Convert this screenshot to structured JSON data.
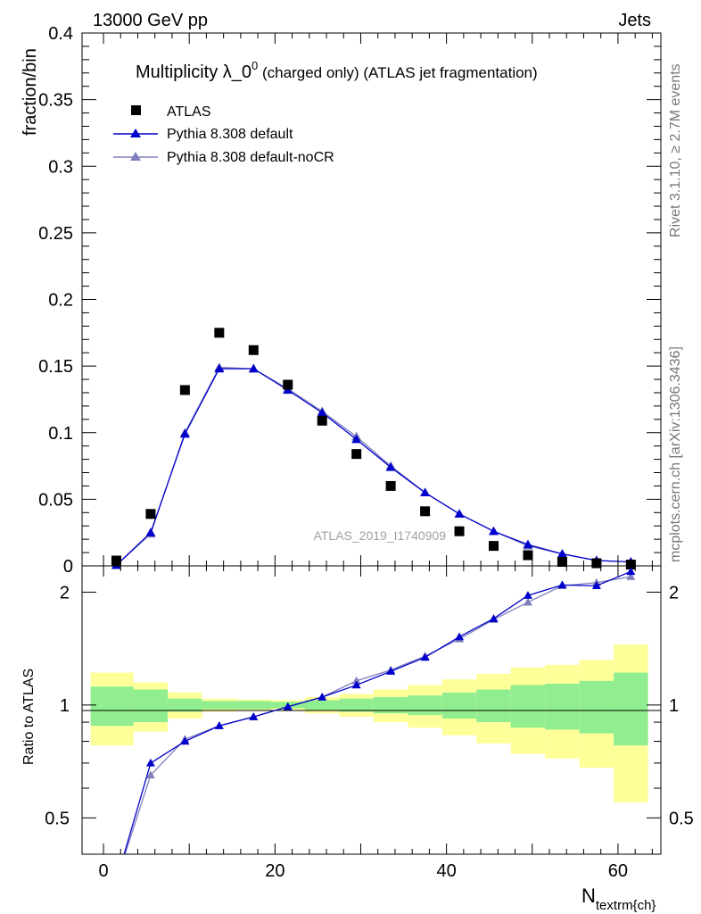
{
  "header": {
    "left": "13000 GeV pp",
    "right": "Jets"
  },
  "title": {
    "main": "Multiplicity λ_0",
    "sup": "0",
    "rest": " (charged only) (ATLAS jet fragmentation)"
  },
  "side_labels": {
    "rivet": "Rivet 3.1.10, ≥ 2.7M events",
    "mcplots": "mcplots.cern.ch [arXiv:1306.3436]"
  },
  "watermark": "ATLAS_2019_I1740909",
  "colors": {
    "data": "#000000",
    "default": "#0000cc",
    "nocr": "#8080bb",
    "band_inner": "#90ee90",
    "band_outer": "#ffff99"
  },
  "chart_data": [
    {
      "type": "scatter",
      "panel": "main",
      "ylabel": "fraction/bin",
      "ylim": [
        0,
        0.4
      ],
      "yticks": [
        "0",
        "0.05",
        "0.1",
        "0.15",
        "0.2",
        "0.25",
        "0.3",
        "0.35",
        "0.4"
      ],
      "legend": {
        "placement": "top-left",
        "entries": [
          "ATLAS",
          "Pythia 8.308 default",
          "Pythia 8.308 default-noCR"
        ]
      },
      "x": [
        1.5,
        5.5,
        9.5,
        13.5,
        17.5,
        21.5,
        25.5,
        29.5,
        33.5,
        37.5,
        41.5,
        45.5,
        49.5,
        53.5,
        57.5,
        61.5
      ],
      "series": [
        {
          "name": "ATLAS",
          "marker": "square",
          "values": [
            0.004,
            0.039,
            0.132,
            0.175,
            0.162,
            0.136,
            0.109,
            0.084,
            0.06,
            0.041,
            0.026,
            0.015,
            0.008,
            0.003,
            0.002,
            0.001
          ]
        },
        {
          "name": "Pythia 8.308 default",
          "marker": "triangle",
          "values": [
            0.0005,
            0.025,
            0.099,
            0.148,
            0.148,
            0.132,
            0.115,
            0.095,
            0.074,
            0.055,
            0.039,
            0.026,
            0.016,
            0.009,
            0.004,
            0.003
          ]
        },
        {
          "name": "Pythia 8.308 default-noCR",
          "marker": "triangle",
          "values": [
            0.0005,
            0.024,
            0.1,
            0.149,
            0.148,
            0.133,
            0.116,
            0.097,
            0.075,
            0.055,
            0.039,
            0.026,
            0.015,
            0.009,
            0.004,
            0.003
          ]
        }
      ]
    },
    {
      "type": "line",
      "panel": "ratio",
      "ylabel": "Ratio to ATLAS",
      "xlabel": "N_textrm{ch}",
      "xlim": [
        -2.5,
        65
      ],
      "xticks": [
        "0",
        "20",
        "40",
        "60"
      ],
      "ylim": [
        0.4,
        2.35
      ],
      "yticks": [
        "0.5",
        "1",
        "2"
      ],
      "x": [
        1.5,
        5.5,
        9.5,
        13.5,
        17.5,
        21.5,
        25.5,
        29.5,
        33.5,
        37.5,
        41.5,
        45.5,
        49.5,
        53.5,
        57.5,
        61.5
      ],
      "series": [
        {
          "name": "Pythia 8.308 default",
          "values": [
            0.12,
            0.7,
            0.8,
            0.88,
            0.93,
            0.99,
            1.05,
            1.13,
            1.23,
            1.34,
            1.52,
            1.7,
            1.96,
            2.09,
            2.08,
            2.27
          ]
        },
        {
          "name": "Pythia 8.308 default-noCR",
          "values": [
            0.12,
            0.65,
            0.81,
            0.88,
            0.93,
            0.99,
            1.05,
            1.16,
            1.24,
            1.35,
            1.5,
            1.69,
            1.88,
            2.08,
            2.12,
            2.2
          ]
        }
      ],
      "band_edges": [
        -1.5,
        3.5,
        7.5,
        11.5,
        15.5,
        19.5,
        23.5,
        27.5,
        31.5,
        35.5,
        39.5,
        43.5,
        47.5,
        51.5,
        55.5,
        59.5,
        63.5
      ],
      "band_inner": [
        0.12,
        0.1,
        0.04,
        0.025,
        0.025,
        0.02,
        0.03,
        0.04,
        0.05,
        0.06,
        0.08,
        0.1,
        0.13,
        0.14,
        0.16,
        0.22
      ],
      "band_outer": [
        0.22,
        0.15,
        0.08,
        0.04,
        0.035,
        0.03,
        0.05,
        0.07,
        0.1,
        0.13,
        0.17,
        0.21,
        0.26,
        0.28,
        0.32,
        0.45
      ]
    }
  ]
}
